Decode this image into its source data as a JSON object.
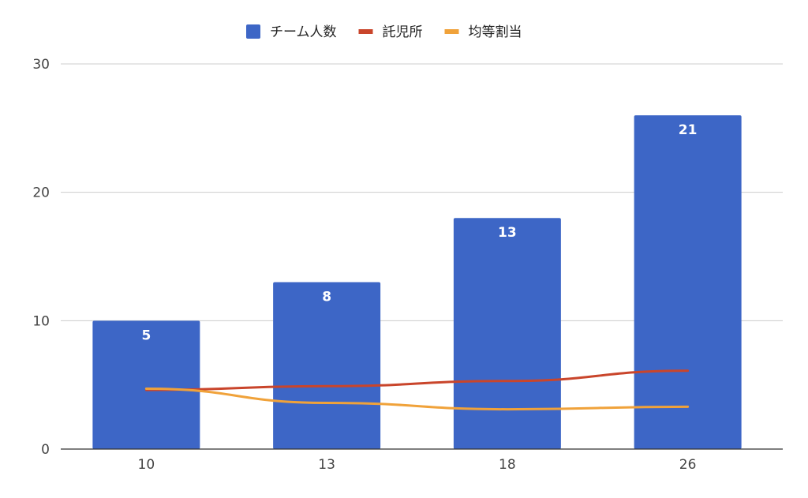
{
  "chart_data": {
    "type": "bar",
    "categories": [
      "10",
      "13",
      "18",
      "26"
    ],
    "series": [
      {
        "name": "チーム人数",
        "kind": "bar",
        "color": "#3d66c6",
        "values": [
          10,
          13,
          18,
          26
        ],
        "data_labels": [
          "5",
          "8",
          "13",
          "21"
        ]
      },
      {
        "name": "託児所",
        "kind": "line",
        "color": "#c9452b",
        "values": [
          4.6,
          4.9,
          5.3,
          6.1
        ]
      },
      {
        "name": "均等割当",
        "kind": "line",
        "color": "#f0a23a",
        "values": [
          4.7,
          3.6,
          3.1,
          3.3
        ]
      }
    ],
    "ylim": [
      0,
      30
    ],
    "yticks": [
      "0",
      "10",
      "20",
      "30"
    ],
    "grid": true,
    "legend_position": "top-center",
    "title": "",
    "xlabel": "",
    "ylabel": ""
  }
}
